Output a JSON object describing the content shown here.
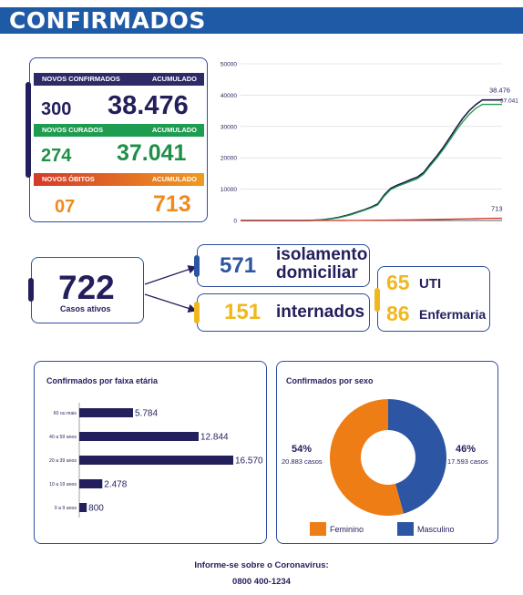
{
  "header": {
    "title": "CONFIRMADOS"
  },
  "stats": {
    "confirmed": {
      "label": "NOVOS CONFIRMADOS",
      "acc_label": "ACUMULADO",
      "new": "300",
      "total": "38.476"
    },
    "recovered": {
      "label": "NOVOS CURADOS",
      "acc_label": "ACUMULADO",
      "new": "274",
      "total": "37.041"
    },
    "deaths": {
      "label": "NOVOS ÓBITOS",
      "acc_label": "ACUMULADO",
      "new": "07",
      "total": "713"
    }
  },
  "active": {
    "total": "722",
    "total_label": "Casos ativos",
    "home": {
      "value": "571",
      "label_1": "isolamento",
      "label_2": "domiciliar"
    },
    "hospital": {
      "value": "151",
      "label": "internados"
    },
    "icu": {
      "value": "65",
      "label": "UTI"
    },
    "ward": {
      "value": "86",
      "label": "Enfermaria"
    }
  },
  "chart_data": [
    {
      "type": "line",
      "title": "",
      "ylim": [
        0,
        50000
      ],
      "yticks": [
        "0",
        "10000",
        "20000",
        "30000",
        "40000",
        "50000"
      ],
      "x": [
        0,
        1,
        2,
        3,
        4,
        5,
        6,
        7,
        8,
        9,
        10,
        11,
        12,
        13,
        14,
        15,
        16,
        17,
        18,
        19,
        20,
        21,
        22,
        23,
        24,
        25,
        26,
        27,
        28,
        29,
        30,
        31,
        32,
        33,
        34,
        35,
        36,
        37,
        38,
        39,
        40
      ],
      "series": [
        {
          "name": "",
          "color": "#1c1a4a",
          "values": [
            0,
            0,
            0,
            0,
            0,
            0,
            0,
            0,
            0,
            0,
            0,
            50,
            150,
            350,
            650,
            1000,
            1500,
            2100,
            2800,
            3500,
            4300,
            5300,
            8200,
            10300,
            11300,
            12100,
            13000,
            13800,
            15300,
            18000,
            20500,
            23300,
            26400,
            29600,
            32600,
            35100,
            37000,
            38476,
            38476,
            38476,
            38476
          ],
          "end_label": "38.476"
        },
        {
          "name": "",
          "color": "#1e9c4f",
          "values": [
            0,
            0,
            0,
            0,
            0,
            0,
            0,
            0,
            0,
            0,
            0,
            30,
            100,
            280,
            550,
            880,
            1350,
            1900,
            2600,
            3300,
            4050,
            5000,
            7800,
            9900,
            10900,
            11700,
            12500,
            13300,
            14800,
            17400,
            19900,
            22600,
            25600,
            28700,
            31500,
            33900,
            35800,
            37041,
            37041,
            37041,
            37041
          ],
          "end_label": "37.041"
        },
        {
          "name": "",
          "color": "#d4392a",
          "values": [
            0,
            0,
            0,
            0,
            0,
            0,
            0,
            0,
            0,
            0,
            0,
            0,
            2,
            5,
            10,
            16,
            24,
            34,
            46,
            60,
            76,
            94,
            114,
            136,
            160,
            186,
            214,
            244,
            276,
            310,
            346,
            384,
            424,
            466,
            510,
            556,
            604,
            654,
            690,
            713,
            713
          ],
          "end_label": "713"
        }
      ]
    },
    {
      "type": "bar",
      "orientation": "horizontal",
      "title": "Confirmados por faixa etária",
      "categories": [
        "60 ou mais",
        "40 a 59 anos",
        "20 a 39 anos",
        "10 a 19 anos",
        "0 a 9 anos"
      ],
      "values": [
        5784,
        12844,
        16570,
        2478,
        800
      ],
      "value_labels": [
        "5.784",
        "12.844",
        "16.570",
        "2.478",
        "800"
      ],
      "color": "#231f5c"
    },
    {
      "type": "pie",
      "title": "Confirmados por sexo",
      "labels": [
        "Masculino",
        "Feminino"
      ],
      "values": [
        17593,
        20883
      ],
      "percent_labels": [
        "46%",
        "54%"
      ],
      "count_labels": [
        "17.593 casos",
        "20.883 casos"
      ],
      "colors": [
        "#2c56a3",
        "#ef7d15"
      ]
    }
  ],
  "footer": {
    "line1": "Informe-se sobre o Coronavírus:",
    "line2": "0800 400-1234"
  }
}
